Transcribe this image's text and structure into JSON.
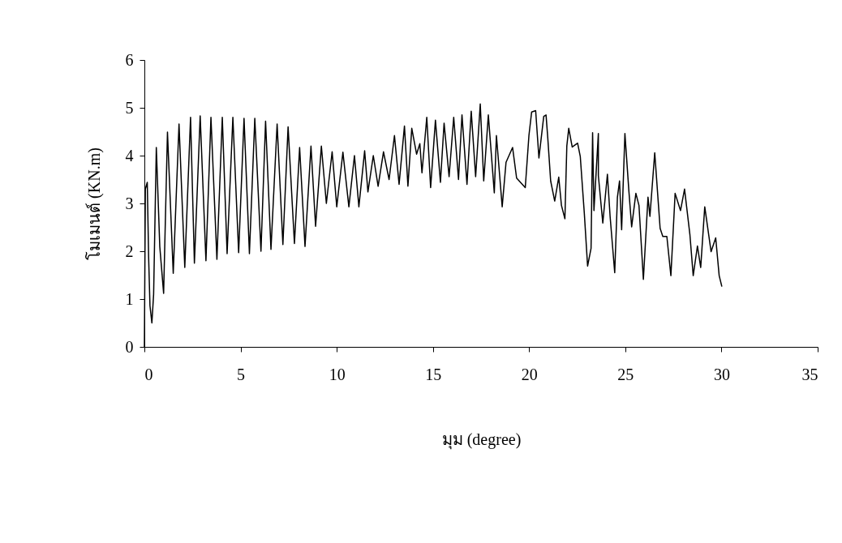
{
  "chart_data": {
    "type": "line",
    "xlabel": "มุม (degree)",
    "ylabel": "โมเมนต์ (KN.m)",
    "xlim": [
      0,
      35
    ],
    "xticks": [
      0,
      5,
      10,
      15,
      20,
      25,
      30,
      35
    ],
    "ylim": [
      0,
      6
    ],
    "yticks": [
      0,
      1,
      2,
      3,
      4,
      5,
      6
    ],
    "grid": false,
    "marker": "none",
    "line_style": "solid",
    "series": [
      {
        "color": "#000000",
        "x": [
          0,
          0.05,
          0.15,
          0.22,
          0.29,
          0.39,
          0.48,
          0.62,
          0.8,
          1.0,
          1.2,
          1.5,
          1.8,
          2.1,
          2.4,
          2.6,
          2.9,
          3.2,
          3.46,
          3.77,
          4.05,
          4.3,
          4.6,
          4.9,
          5.18,
          5.46,
          5.74,
          6.06,
          6.3,
          6.58,
          6.9,
          7.2,
          7.47,
          7.8,
          8.07,
          8.35,
          8.66,
          8.9,
          9.2,
          9.46,
          9.76,
          10.0,
          10.32,
          10.63,
          10.92,
          11.15,
          11.45,
          11.62,
          11.9,
          12.15,
          12.43,
          12.72,
          13.0,
          13.24,
          13.52,
          13.7,
          13.9,
          14.15,
          14.32,
          14.43,
          14.68,
          14.88,
          15.13,
          15.39,
          15.58,
          15.84,
          16.08,
          16.33,
          16.51,
          16.77,
          16.99,
          17.22,
          17.46,
          17.64,
          17.88,
          18.19,
          18.3,
          18.6,
          18.8,
          19.14,
          19.35,
          19.8,
          19.99,
          20.13,
          20.34,
          20.51,
          20.76,
          20.88,
          20.97,
          21.12,
          21.33,
          21.54,
          21.68,
          21.86,
          21.96,
          22.06,
          22.24,
          22.52,
          22.66,
          22.87,
          23.04,
          23.22,
          23.3,
          23.37,
          23.6,
          23.6,
          23.83,
          24.07,
          24.21,
          24.45,
          24.59,
          24.7,
          24.81,
          24.98,
          25.19,
          25.33,
          25.55,
          25.71,
          25.94,
          26.18,
          26.28,
          26.53,
          26.81,
          26.95,
          27.16,
          27.37,
          27.59,
          27.87,
          28.08,
          28.36,
          28.53,
          28.75,
          28.92,
          29.13,
          29.46,
          29.7,
          29.88,
          30.02
        ],
        "values": [
          0,
          3.3,
          3.44,
          1.88,
          0.86,
          0.5,
          1.1,
          4.17,
          2.1,
          1.12,
          4.49,
          1.54,
          4.66,
          1.66,
          4.8,
          1.75,
          4.83,
          1.8,
          4.8,
          1.83,
          4.8,
          1.95,
          4.8,
          1.97,
          4.78,
          1.95,
          4.78,
          2.0,
          4.72,
          2.04,
          4.66,
          2.14,
          4.6,
          2.16,
          4.17,
          2.1,
          4.2,
          2.52,
          4.2,
          3.0,
          4.08,
          2.93,
          4.07,
          2.93,
          4.0,
          2.93,
          4.1,
          3.24,
          4.0,
          3.36,
          4.08,
          3.5,
          4.42,
          3.4,
          4.62,
          3.36,
          4.57,
          4.03,
          4.25,
          3.64,
          4.8,
          3.33,
          4.74,
          3.44,
          4.68,
          3.56,
          4.8,
          3.5,
          4.85,
          3.4,
          4.93,
          3.56,
          5.08,
          3.47,
          4.85,
          3.22,
          4.42,
          2.93,
          3.86,
          4.17,
          3.53,
          3.33,
          4.42,
          4.91,
          4.94,
          3.95,
          4.82,
          4.85,
          4.37,
          3.47,
          3.05,
          3.55,
          2.96,
          2.68,
          4.2,
          4.57,
          4.18,
          4.26,
          3.98,
          2.79,
          1.69,
          2.06,
          4.48,
          2.85,
          4.46,
          3.58,
          2.59,
          3.61,
          2.73,
          1.55,
          3.13,
          3.47,
          2.45,
          4.46,
          3.24,
          2.51,
          3.21,
          2.96,
          1.41,
          3.13,
          2.73,
          4.06,
          2.48,
          2.31,
          2.31,
          1.49,
          3.21,
          2.85,
          3.3,
          2.34,
          1.49,
          2.11,
          1.66,
          2.93,
          1.99,
          2.28,
          1.49,
          1.26
        ]
      }
    ]
  }
}
